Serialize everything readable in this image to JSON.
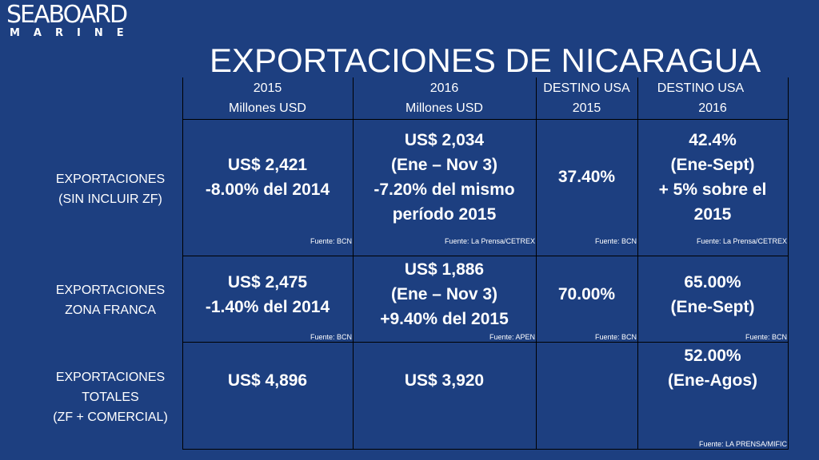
{
  "logo": {
    "top": "SEABOARD",
    "bottom": "MARINE"
  },
  "title": "EXPORTACIONES DE NICARAGUA",
  "headers": [
    {
      "line1": "2015",
      "line2": "Millones USD"
    },
    {
      "line1": "2016",
      "line2": "Millones USD"
    },
    {
      "line1": "DESTINO USA",
      "line2": "2015"
    },
    {
      "line1": "DESTINO USA",
      "line2": "2016"
    }
  ],
  "rows": [
    {
      "label": [
        "EXPORTACIONES",
        "(SIN INCLUIR ZF)"
      ],
      "cells": [
        {
          "lines": [
            "US$ 2,421",
            "-8.00% del 2014"
          ],
          "source": "Fuente: BCN"
        },
        {
          "lines": [
            "US$ 2,034",
            "(Ene – Nov 3)",
            "-7.20% del mismo",
            "período 2015"
          ],
          "source": "Fuente: La Prensa/CETREX"
        },
        {
          "lines": [
            "37.40%"
          ],
          "source": "Fuente: BCN"
        },
        {
          "lines": [
            "42.4%",
            "(Ene-Sept)",
            "+ 5% sobre el",
            "2015"
          ],
          "source": "Fuente: La Prensa/CETREX"
        }
      ]
    },
    {
      "label": [
        "EXPORTACIONES",
        "ZONA FRANCA"
      ],
      "cells": [
        {
          "lines": [
            "US$ 2,475",
            "-1.40% del 2014"
          ],
          "source": "Fuente: BCN"
        },
        {
          "lines": [
            "US$ 1,886",
            "(Ene – Nov 3)",
            "+9.40% del 2015"
          ],
          "source": "Fuente: APEN"
        },
        {
          "lines": [
            "70.00%"
          ],
          "source": "Fuente: BCN"
        },
        {
          "lines": [
            "65.00%",
            "(Ene-Sept)"
          ],
          "source": "Fuente: BCN"
        }
      ]
    },
    {
      "label": [
        "EXPORTACIONES",
        "TOTALES",
        "(ZF + COMERCIAL)"
      ],
      "cells": [
        {
          "lines": [
            "US$ 4,896"
          ],
          "source": ""
        },
        {
          "lines": [
            "US$ 3,920"
          ],
          "source": ""
        },
        {
          "lines": [],
          "source": ""
        },
        {
          "lines": [
            "52.00%",
            "(Ene-Agos)"
          ],
          "source": "Fuente: LA PRENSA/MIFIC"
        }
      ]
    }
  ]
}
